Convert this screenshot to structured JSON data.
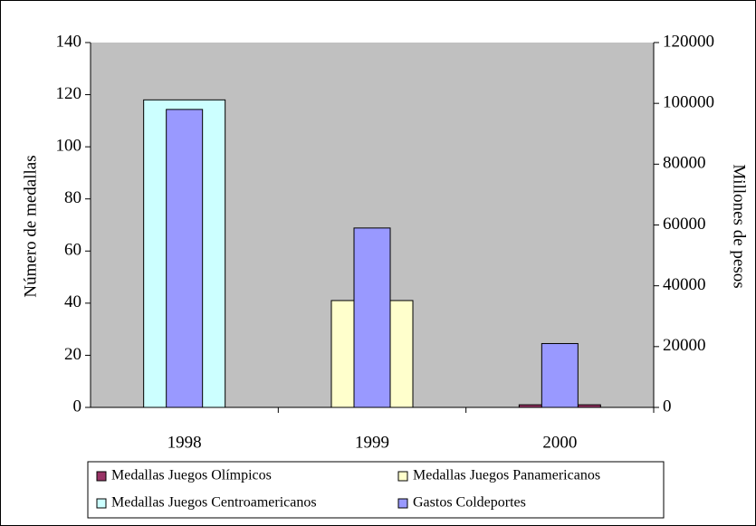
{
  "chart_data": {
    "type": "bar",
    "categories": [
      "1998",
      "1999",
      "2000"
    ],
    "series": [
      {
        "name": "Medallas Juegos Olímpicos",
        "color": "#993366",
        "values": [
          0,
          0,
          1
        ]
      },
      {
        "name": "Medallas Juegos Panamericanos",
        "color": "#ffffcc",
        "values": [
          0,
          41,
          0
        ]
      },
      {
        "name": "Medallas Juegos Centroamericanos",
        "color": "#ccffff",
        "values": [
          118,
          0,
          0
        ]
      },
      {
        "name": "Gastos Coldeportes",
        "color": "#9999ff",
        "values": [
          98000,
          59000,
          21000
        ],
        "axis": "y2"
      }
    ],
    "y_label": "Número de medallas",
    "y2_label": "Millones de pesos",
    "ylim": [
      0,
      140
    ],
    "yticks": [
      0,
      20,
      40,
      60,
      80,
      100,
      120,
      140
    ],
    "y2lim": [
      0,
      120000
    ],
    "y2ticks": [
      0,
      20000,
      40000,
      60000,
      80000,
      100000,
      120000
    ],
    "plot_background": "#c0c0c0",
    "legend": "bottom"
  }
}
